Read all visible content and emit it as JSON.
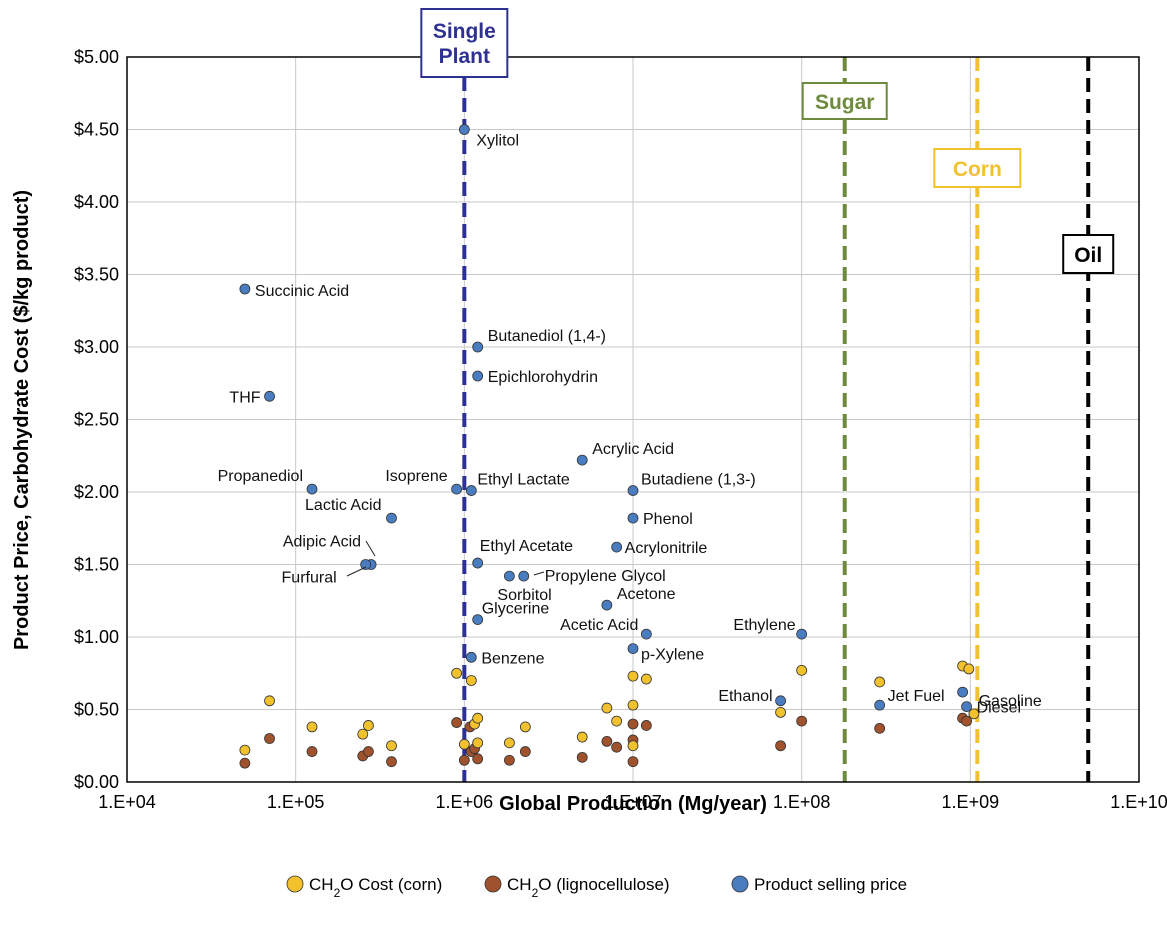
{
  "chart_data": {
    "type": "scatter",
    "x_scale": "log",
    "xlabel": "Global Production (Mg/year)",
    "ylabel": "Product Price, Carbohydrate Cost ($/kg product)",
    "xlim": [
      10000,
      10000000000
    ],
    "ylim": [
      0,
      5
    ],
    "grid": true,
    "x_ticks": [
      {
        "value": 10000,
        "label": "1.E+04"
      },
      {
        "value": 100000,
        "label": "1.E+05"
      },
      {
        "value": 1000000,
        "label": "1.E+06"
      },
      {
        "value": 10000000,
        "label": "1.E+07"
      },
      {
        "value": 100000000,
        "label": "1.E+08"
      },
      {
        "value": 1000000000,
        "label": "1.E+09"
      },
      {
        "value": 10000000000,
        "label": "1.E+10"
      }
    ],
    "y_ticks": [
      {
        "value": 0,
        "label": "$0.00"
      },
      {
        "value": 0.5,
        "label": "$0.50"
      },
      {
        "value": 1,
        "label": "$1.00"
      },
      {
        "value": 1.5,
        "label": "$1.50"
      },
      {
        "value": 2,
        "label": "$2.00"
      },
      {
        "value": 2.5,
        "label": "$2.50"
      },
      {
        "value": 3,
        "label": "$3.00"
      },
      {
        "value": 3.5,
        "label": "$3.50"
      },
      {
        "value": 4,
        "label": "$4.00"
      },
      {
        "value": 4.5,
        "label": "$4.50"
      },
      {
        "value": 5,
        "label": "$5.00"
      }
    ],
    "reference_lines": [
      {
        "label": "Single Plant",
        "x": 1000000,
        "color": "#2E3192"
      },
      {
        "label": "Sugar",
        "x": 180000000,
        "color": "#6E8B3D"
      },
      {
        "label": "Corn",
        "x": 1100000000,
        "color": "#F2C12E"
      },
      {
        "label": "Oil",
        "x": 5000000000,
        "color": "#000000"
      }
    ],
    "legend": {
      "position": "bottom",
      "entries": [
        {
          "key": "corn",
          "parts": [
            "CH",
            "2",
            "O Cost (corn)"
          ]
        },
        {
          "key": "ligno",
          "parts": [
            "CH",
            "2",
            "O (lignocellulose)"
          ]
        },
        {
          "key": "product",
          "parts": [
            "Product selling price"
          ]
        }
      ]
    },
    "series": [
      {
        "key": "product",
        "color": "#4A7CC0",
        "points": [
          {
            "x": 1000000,
            "y": 4.5,
            "label": "Xylitol"
          },
          {
            "x": 50000,
            "y": 3.4,
            "label": "Succinic Acid"
          },
          {
            "x": 1200000,
            "y": 3.0,
            "label": "Butanediol (1,4-)"
          },
          {
            "x": 1200000,
            "y": 2.8,
            "label": "Epichlorohydrin"
          },
          {
            "x": 70000,
            "y": 2.66,
            "label": "THF"
          },
          {
            "x": 5000000,
            "y": 2.22,
            "label": "Acrylic Acid"
          },
          {
            "x": 125000,
            "y": 2.02,
            "label": "Propanediol"
          },
          {
            "x": 900000,
            "y": 2.02,
            "label": "Isoprene"
          },
          {
            "x": 1100000,
            "y": 2.01,
            "label": "Ethyl Lactate"
          },
          {
            "x": 10000000,
            "y": 2.01,
            "label": "Butadiene (1,3-)"
          },
          {
            "x": 370000,
            "y": 1.82,
            "label": "Lactic Acid"
          },
          {
            "x": 10000000,
            "y": 1.82,
            "label": "Phenol"
          },
          {
            "x": 8000000,
            "y": 1.62,
            "label": "Acrylonitrile"
          },
          {
            "x": 280000,
            "y": 1.5,
            "label": "Adipic Acid"
          },
          {
            "x": 260000,
            "y": 1.5,
            "label": "Furfural"
          },
          {
            "x": 1200000,
            "y": 1.51,
            "label": "Ethyl Acetate"
          },
          {
            "x": 1850000,
            "y": 1.42,
            "label": "Sorbitol"
          },
          {
            "x": 2250000,
            "y": 1.42,
            "label": "Propylene Glycol"
          },
          {
            "x": 7000000,
            "y": 1.22,
            "label": "Acetone"
          },
          {
            "x": 1200000,
            "y": 1.12,
            "label": "Glycerine"
          },
          {
            "x": 12000000,
            "y": 1.02,
            "label": "Acetic Acid"
          },
          {
            "x": 100000000,
            "y": 1.02,
            "label": "Ethylene"
          },
          {
            "x": 10000000,
            "y": 0.92,
            "label": "p-Xylene"
          },
          {
            "x": 1100000,
            "y": 0.86,
            "label": "Benzene"
          },
          {
            "x": 75000000,
            "y": 0.56,
            "label": "Ethanol"
          },
          {
            "x": 900000000,
            "y": 0.62,
            "label": "Gasoline"
          },
          {
            "x": 290000000,
            "y": 0.53,
            "label": "Jet Fuel"
          },
          {
            "x": 950000000,
            "y": 0.52,
            "label": "Diesel"
          }
        ]
      },
      {
        "key": "corn",
        "color": "#F2C12E",
        "points": [
          {
            "x": 50000,
            "y": 0.22
          },
          {
            "x": 70000,
            "y": 0.56
          },
          {
            "x": 125000,
            "y": 0.38
          },
          {
            "x": 250000,
            "y": 0.33
          },
          {
            "x": 270000,
            "y": 0.39
          },
          {
            "x": 370000,
            "y": 0.25
          },
          {
            "x": 900000,
            "y": 0.75
          },
          {
            "x": 1000000,
            "y": 0.26
          },
          {
            "x": 1100000,
            "y": 0.7
          },
          {
            "x": 1150000,
            "y": 0.4
          },
          {
            "x": 1200000,
            "y": 0.44
          },
          {
            "x": 1200000,
            "y": 0.27
          },
          {
            "x": 1850000,
            "y": 0.27
          },
          {
            "x": 2300000,
            "y": 0.38
          },
          {
            "x": 5000000,
            "y": 0.31
          },
          {
            "x": 7000000,
            "y": 0.51
          },
          {
            "x": 8000000,
            "y": 0.42
          },
          {
            "x": 10000000,
            "y": 0.73
          },
          {
            "x": 10000000,
            "y": 0.53
          },
          {
            "x": 10000000,
            "y": 0.25
          },
          {
            "x": 12000000,
            "y": 0.71
          },
          {
            "x": 75000000,
            "y": 0.48
          },
          {
            "x": 100000000,
            "y": 0.77
          },
          {
            "x": 290000000,
            "y": 0.69
          },
          {
            "x": 900000000,
            "y": 0.8
          },
          {
            "x": 980000000,
            "y": 0.78
          },
          {
            "x": 1050000000,
            "y": 0.47
          }
        ]
      },
      {
        "key": "ligno",
        "color": "#A0522D",
        "points": [
          {
            "x": 50000,
            "y": 0.13
          },
          {
            "x": 70000,
            "y": 0.3
          },
          {
            "x": 125000,
            "y": 0.21
          },
          {
            "x": 250000,
            "y": 0.18
          },
          {
            "x": 270000,
            "y": 0.21
          },
          {
            "x": 370000,
            "y": 0.14
          },
          {
            "x": 900000,
            "y": 0.41
          },
          {
            "x": 1000000,
            "y": 0.15
          },
          {
            "x": 1080000,
            "y": 0.38
          },
          {
            "x": 1100000,
            "y": 0.21
          },
          {
            "x": 1150000,
            "y": 0.23
          },
          {
            "x": 1200000,
            "y": 0.16
          },
          {
            "x": 1850000,
            "y": 0.15
          },
          {
            "x": 2300000,
            "y": 0.21
          },
          {
            "x": 5000000,
            "y": 0.17
          },
          {
            "x": 7000000,
            "y": 0.28
          },
          {
            "x": 8000000,
            "y": 0.24
          },
          {
            "x": 10000000,
            "y": 0.4
          },
          {
            "x": 10000000,
            "y": 0.29
          },
          {
            "x": 10000000,
            "y": 0.14
          },
          {
            "x": 12000000,
            "y": 0.39
          },
          {
            "x": 75000000,
            "y": 0.25
          },
          {
            "x": 100000000,
            "y": 0.42
          },
          {
            "x": 290000000,
            "y": 0.37
          },
          {
            "x": 900000000,
            "y": 0.44
          },
          {
            "x": 950000000,
            "y": 0.42
          }
        ]
      }
    ]
  }
}
